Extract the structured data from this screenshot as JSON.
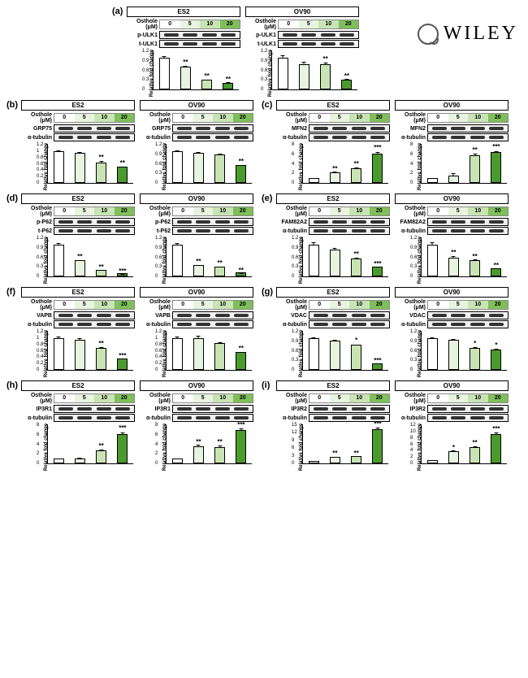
{
  "brand": "WILEY",
  "doses": [
    "0",
    "5",
    "10",
    "20"
  ],
  "dose_label": "Osthole (μM)",
  "dose_colors": [
    "#ffffff",
    "#e8f3e0",
    "#c8e4b4",
    "#7fbf5a"
  ],
  "bar_colors": [
    "#ffffff",
    "#e8f3e0",
    "#c8e4b4",
    "#4a9b2e"
  ],
  "ylabel": "Relative fold change",
  "panels": [
    {
      "id": "a",
      "single_row": true,
      "blots": [
        "p-ULK1",
        "t-ULK1"
      ],
      "cells": [
        {
          "name": "ES2",
          "ymax": 1.2,
          "ystep": 0.3,
          "bars": [
            {
              "v": 1.0,
              "e": 0.08,
              "s": ""
            },
            {
              "v": 0.72,
              "e": 0.06,
              "s": "**"
            },
            {
              "v": 0.3,
              "e": 0.05,
              "s": "**"
            },
            {
              "v": 0.2,
              "e": 0.06,
              "s": "**"
            }
          ]
        },
        {
          "name": "OV90",
          "ymax": 1.2,
          "ystep": 0.3,
          "bars": [
            {
              "v": 1.0,
              "e": 0.1,
              "s": ""
            },
            {
              "v": 0.8,
              "e": 0.1,
              "s": ""
            },
            {
              "v": 0.8,
              "e": 0.08,
              "s": "**"
            },
            {
              "v": 0.3,
              "e": 0.06,
              "s": "**"
            }
          ]
        }
      ]
    },
    {
      "id": "b",
      "blots": [
        "GRP75",
        "α-tubulin"
      ],
      "cells": [
        {
          "name": "ES2",
          "ymax": 1.2,
          "ystep": 0.2,
          "bars": [
            {
              "v": 1.0,
              "e": 0.05,
              "s": ""
            },
            {
              "v": 0.95,
              "e": 0.05,
              "s": ""
            },
            {
              "v": 0.65,
              "e": 0.06,
              "s": "**"
            },
            {
              "v": 0.5,
              "e": 0.05,
              "s": "**"
            }
          ]
        },
        {
          "name": "OV90",
          "ymax": 1.2,
          "ystep": 0.3,
          "bars": [
            {
              "v": 1.0,
              "e": 0.05,
              "s": ""
            },
            {
              "v": 0.95,
              "e": 0.06,
              "s": ""
            },
            {
              "v": 0.9,
              "e": 0.05,
              "s": ""
            },
            {
              "v": 0.55,
              "e": 0.05,
              "s": "**"
            }
          ]
        }
      ]
    },
    {
      "id": "c",
      "blots": [
        "MFN2",
        "α-tubulin"
      ],
      "cells": [
        {
          "name": "ES2",
          "ymax": 8,
          "ystep": 2,
          "bars": [
            {
              "v": 1.0,
              "e": 0.3,
              "s": ""
            },
            {
              "v": 2.2,
              "e": 0.4,
              "s": "**"
            },
            {
              "v": 3.0,
              "e": 0.5,
              "s": "**"
            },
            {
              "v": 6.2,
              "e": 0.5,
              "s": "***"
            }
          ]
        },
        {
          "name": "OV90",
          "ymax": 8,
          "ystep": 2,
          "bars": [
            {
              "v": 1.0,
              "e": 0.4,
              "s": ""
            },
            {
              "v": 1.6,
              "e": 0.8,
              "s": ""
            },
            {
              "v": 5.8,
              "e": 0.5,
              "s": "**"
            },
            {
              "v": 6.5,
              "e": 0.4,
              "s": "***"
            }
          ]
        }
      ]
    },
    {
      "id": "d",
      "blots": [
        "p-P62",
        "t-P62"
      ],
      "cells": [
        {
          "name": "ES2",
          "ymax": 1.2,
          "ystep": 0.3,
          "bars": [
            {
              "v": 1.0,
              "e": 0.08,
              "s": ""
            },
            {
              "v": 0.5,
              "e": 0.05,
              "s": "**"
            },
            {
              "v": 0.2,
              "e": 0.04,
              "s": "**"
            },
            {
              "v": 0.1,
              "e": 0.02,
              "s": "***"
            }
          ]
        },
        {
          "name": "OV90",
          "ymax": 1.2,
          "ystep": 0.3,
          "bars": [
            {
              "v": 1.0,
              "e": 0.08,
              "s": ""
            },
            {
              "v": 0.35,
              "e": 0.05,
              "s": "**"
            },
            {
              "v": 0.3,
              "e": 0.05,
              "s": "**"
            },
            {
              "v": 0.12,
              "e": 0.03,
              "s": "**"
            }
          ]
        }
      ]
    },
    {
      "id": "e",
      "blots": [
        "FAM82A2",
        "α-tubulin"
      ],
      "cells": [
        {
          "name": "ES2",
          "ymax": 1.2,
          "ystep": 0.3,
          "bars": [
            {
              "v": 1.0,
              "e": 0.1,
              "s": ""
            },
            {
              "v": 0.85,
              "e": 0.08,
              "s": ""
            },
            {
              "v": 0.55,
              "e": 0.07,
              "s": "**"
            },
            {
              "v": 0.3,
              "e": 0.04,
              "s": "***"
            }
          ]
        },
        {
          "name": "OV90",
          "ymax": 1.2,
          "ystep": 0.3,
          "bars": [
            {
              "v": 1.0,
              "e": 0.1,
              "s": ""
            },
            {
              "v": 0.6,
              "e": 0.08,
              "s": "**"
            },
            {
              "v": 0.5,
              "e": 0.06,
              "s": "**"
            },
            {
              "v": 0.25,
              "e": 0.04,
              "s": "**"
            }
          ]
        }
      ]
    },
    {
      "id": "f",
      "blots": [
        "VAPB",
        "α-tubulin"
      ],
      "cells": [
        {
          "name": "ES2",
          "ymax": 1.2,
          "ystep": 0.2,
          "bars": [
            {
              "v": 1.0,
              "e": 0.08,
              "s": ""
            },
            {
              "v": 0.95,
              "e": 0.07,
              "s": ""
            },
            {
              "v": 0.7,
              "e": 0.05,
              "s": "**"
            },
            {
              "v": 0.35,
              "e": 0.04,
              "s": "***"
            }
          ]
        },
        {
          "name": "OV90",
          "ymax": 1.2,
          "ystep": 0.2,
          "bars": [
            {
              "v": 1.0,
              "e": 0.08,
              "s": ""
            },
            {
              "v": 1.0,
              "e": 0.1,
              "s": ""
            },
            {
              "v": 0.85,
              "e": 0.06,
              "s": ""
            },
            {
              "v": 0.55,
              "e": 0.05,
              "s": "**"
            }
          ]
        }
      ]
    },
    {
      "id": "g",
      "blots": [
        "VDAC",
        "α-tubulin"
      ],
      "cells": [
        {
          "name": "ES2",
          "ymax": 1.2,
          "ystep": 0.3,
          "bars": [
            {
              "v": 1.0,
              "e": 0.06,
              "s": ""
            },
            {
              "v": 0.92,
              "e": 0.06,
              "s": ""
            },
            {
              "v": 0.78,
              "e": 0.05,
              "s": "*"
            },
            {
              "v": 0.2,
              "e": 0.03,
              "s": "***"
            }
          ]
        },
        {
          "name": "OV90",
          "ymax": 1.2,
          "ystep": 0.3,
          "bars": [
            {
              "v": 1.0,
              "e": 0.06,
              "s": ""
            },
            {
              "v": 0.95,
              "e": 0.05,
              "s": ""
            },
            {
              "v": 0.7,
              "e": 0.05,
              "s": "*"
            },
            {
              "v": 0.65,
              "e": 0.05,
              "s": "*"
            }
          ]
        }
      ]
    },
    {
      "id": "h",
      "blots": [
        "IP3R1",
        "α-tubulin"
      ],
      "cells": [
        {
          "name": "ES2",
          "ymax": 8,
          "ystep": 2,
          "bars": [
            {
              "v": 1.0,
              "e": 0.3,
              "s": ""
            },
            {
              "v": 1.1,
              "e": 0.4,
              "s": ""
            },
            {
              "v": 2.8,
              "e": 0.3,
              "s": "**"
            },
            {
              "v": 6.2,
              "e": 0.5,
              "s": "***"
            }
          ]
        },
        {
          "name": "OV90",
          "ymax": 8,
          "ystep": 2,
          "bars": [
            {
              "v": 1.0,
              "e": 0.3,
              "s": ""
            },
            {
              "v": 3.5,
              "e": 0.6,
              "s": "**"
            },
            {
              "v": 3.4,
              "e": 0.6,
              "s": "**"
            },
            {
              "v": 7.0,
              "e": 0.5,
              "s": "***"
            }
          ]
        }
      ]
    },
    {
      "id": "i",
      "blots": [
        "IP3R2",
        "α-tubulin"
      ],
      "cells": [
        {
          "name": "ES2",
          "ymax": 15,
          "ystep": 3,
          "bars": [
            {
              "v": 1.0,
              "e": 0.4,
              "s": ""
            },
            {
              "v": 2.6,
              "e": 0.5,
              "s": "**"
            },
            {
              "v": 2.8,
              "e": 0.5,
              "s": "**"
            },
            {
              "v": 13.5,
              "e": 0.8,
              "s": "***"
            }
          ]
        },
        {
          "name": "OV90",
          "ymax": 12,
          "ystep": 2,
          "bars": [
            {
              "v": 1.0,
              "e": 0.4,
              "s": ""
            },
            {
              "v": 3.8,
              "e": 0.6,
              "s": "*"
            },
            {
              "v": 5.0,
              "e": 0.7,
              "s": "**"
            },
            {
              "v": 9.2,
              "e": 0.7,
              "s": "***"
            }
          ]
        }
      ]
    }
  ]
}
